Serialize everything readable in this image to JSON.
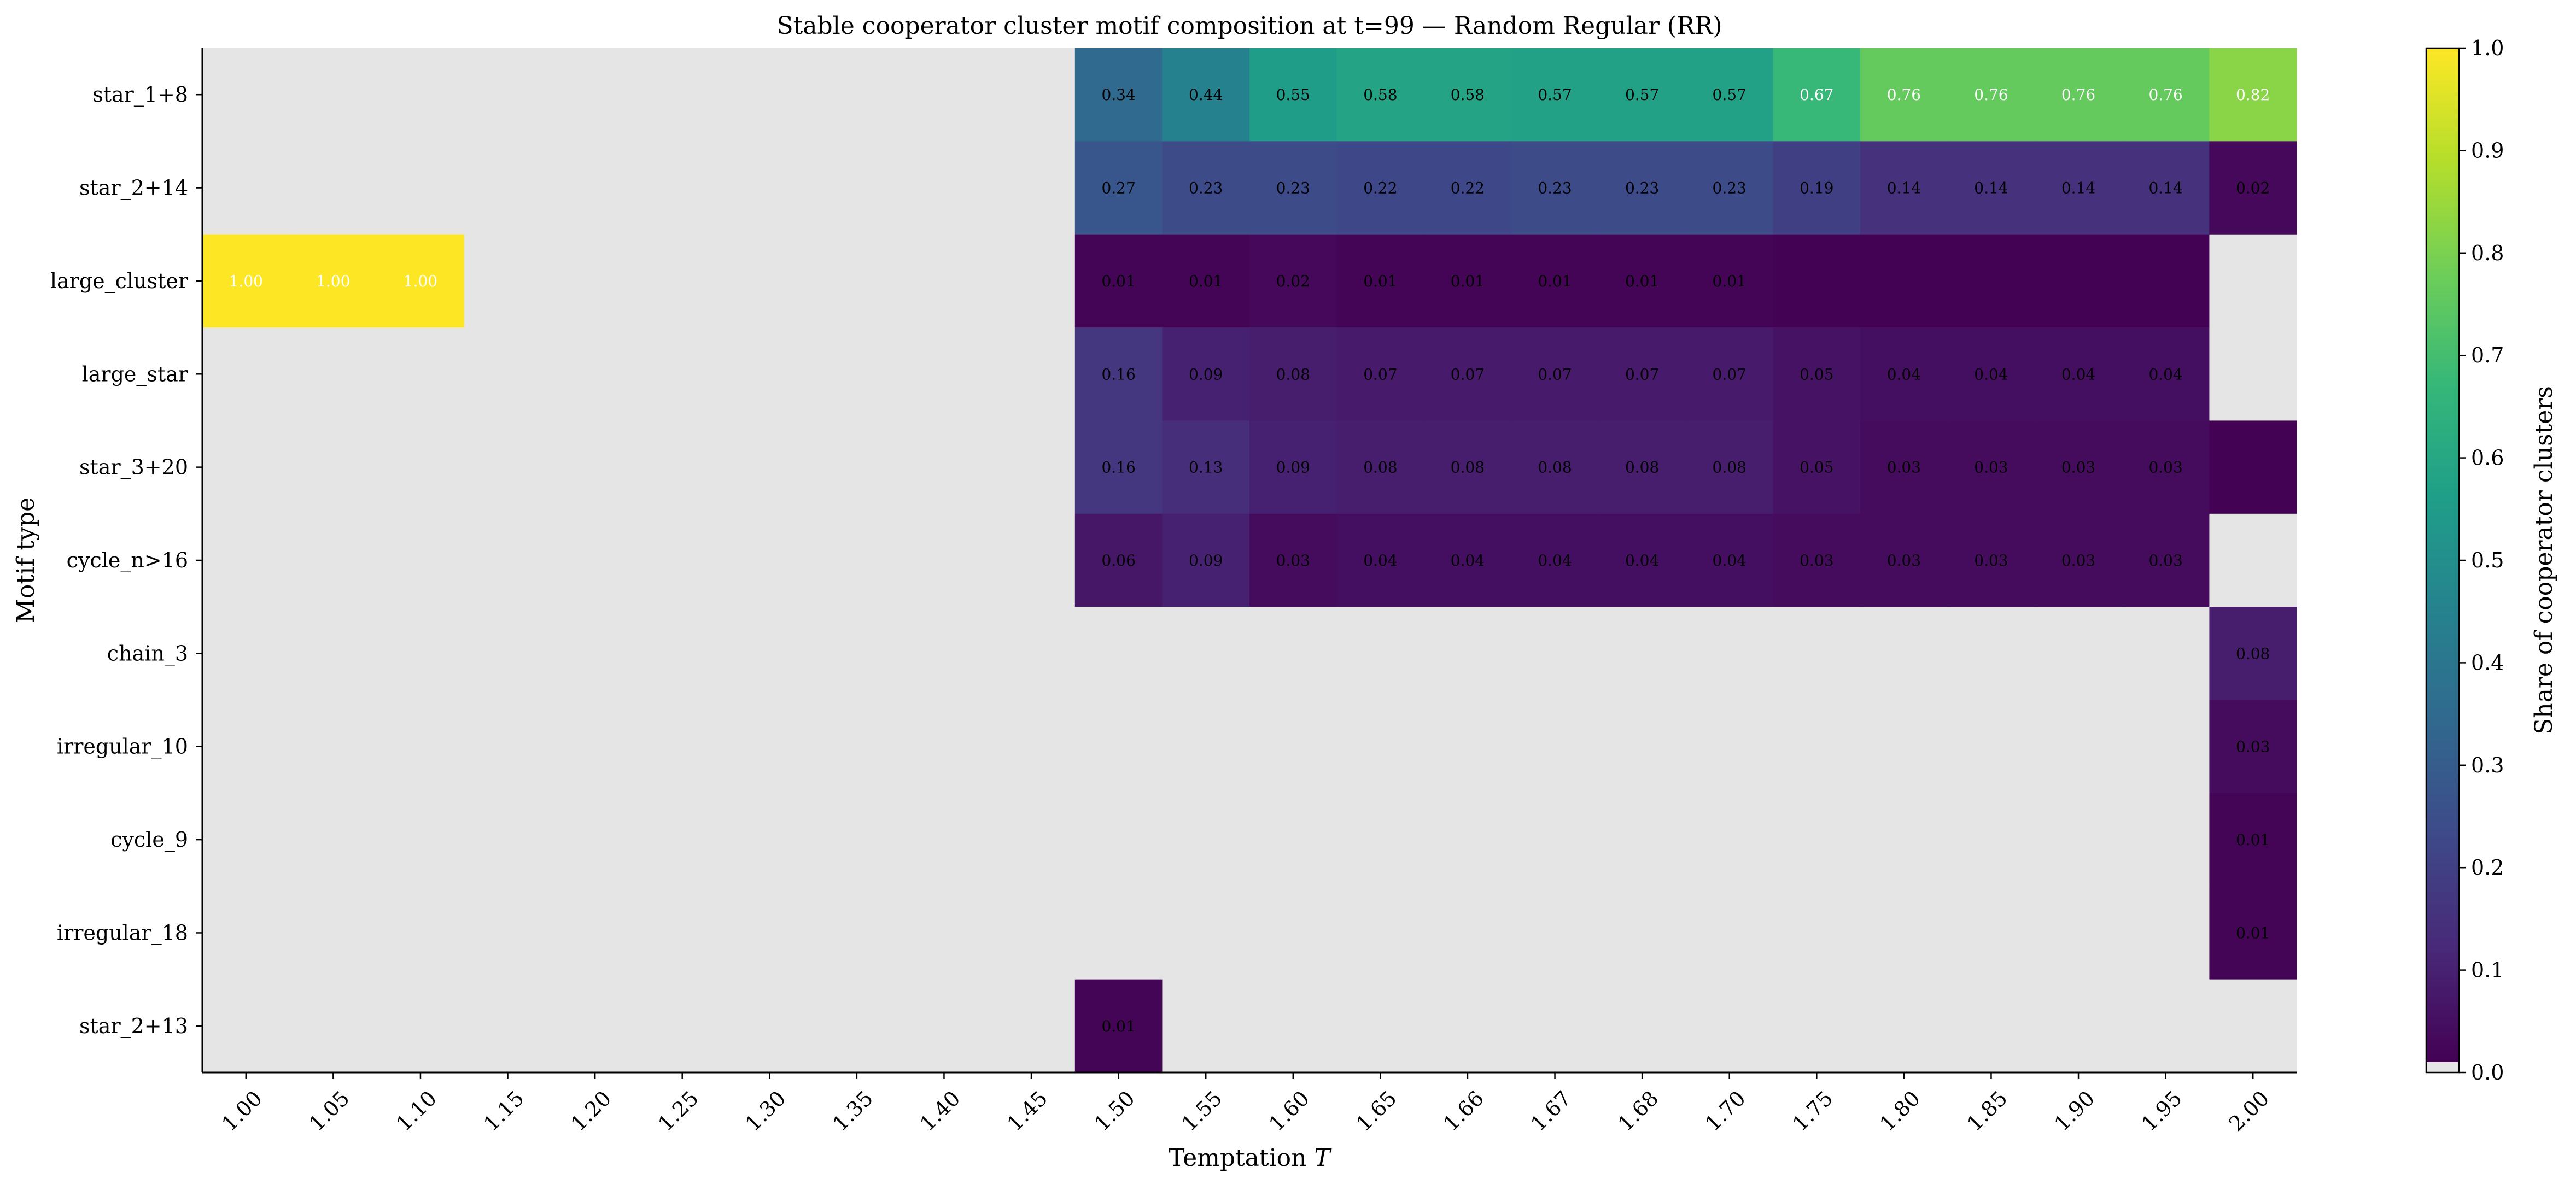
{
  "chart_data": {
    "type": "heatmap",
    "title": "Stable cooperator cluster motif composition at t=99 — Random Regular (RR)",
    "xlabel_main": "Temptation ",
    "xlabel_var": "T",
    "ylabel": "Motif type",
    "colorbar_label": "Share of cooperator clusters",
    "colormap": "viridis",
    "empty_cell_color": "#e5e5e5",
    "vlim": [
      0.0,
      1.0
    ],
    "colorbar_ticks": [
      "0.0",
      "0.1",
      "0.2",
      "0.3",
      "0.4",
      "0.5",
      "0.6",
      "0.7",
      "0.8",
      "0.9",
      "1.0"
    ],
    "columns": [
      "1.00",
      "1.05",
      "1.10",
      "1.15",
      "1.20",
      "1.25",
      "1.30",
      "1.35",
      "1.40",
      "1.45",
      "1.50",
      "1.55",
      "1.60",
      "1.65",
      "1.66",
      "1.67",
      "1.68",
      "1.70",
      "1.75",
      "1.80",
      "1.85",
      "1.90",
      "1.95",
      "2.00"
    ],
    "rows": [
      "star_1+8",
      "star_2+14",
      "large_cluster",
      "large_star",
      "star_3+20",
      "cycle_n>16",
      "chain_3",
      "irregular_10",
      "cycle_9",
      "irregular_18",
      "star_2+13"
    ],
    "values": [
      [
        null,
        null,
        null,
        null,
        null,
        null,
        null,
        null,
        null,
        null,
        0.34,
        0.44,
        0.55,
        0.58,
        0.58,
        0.57,
        0.57,
        0.57,
        0.67,
        0.76,
        0.76,
        0.76,
        0.76,
        0.82
      ],
      [
        null,
        null,
        null,
        null,
        null,
        null,
        null,
        null,
        null,
        null,
        0.27,
        0.23,
        0.23,
        0.22,
        0.22,
        0.23,
        0.23,
        0.23,
        0.19,
        0.14,
        0.14,
        0.14,
        0.14,
        0.02
      ],
      [
        1.0,
        1.0,
        1.0,
        null,
        null,
        null,
        null,
        null,
        null,
        null,
        0.01,
        0.01,
        0.02,
        0.01,
        0.01,
        0.01,
        0.01,
        0.01,
        0.002,
        0.002,
        0.002,
        0.002,
        0.002,
        null
      ],
      [
        null,
        null,
        null,
        null,
        null,
        null,
        null,
        null,
        null,
        null,
        0.16,
        0.09,
        0.08,
        0.07,
        0.07,
        0.07,
        0.07,
        0.07,
        0.05,
        0.04,
        0.04,
        0.04,
        0.04,
        null
      ],
      [
        null,
        null,
        null,
        null,
        null,
        null,
        null,
        null,
        null,
        null,
        0.16,
        0.13,
        0.09,
        0.08,
        0.08,
        0.08,
        0.08,
        0.08,
        0.05,
        0.03,
        0.03,
        0.03,
        0.03,
        0.004
      ],
      [
        null,
        null,
        null,
        null,
        null,
        null,
        null,
        null,
        null,
        null,
        0.06,
        0.09,
        0.03,
        0.04,
        0.04,
        0.04,
        0.04,
        0.04,
        0.03,
        0.03,
        0.03,
        0.03,
        0.03,
        null
      ],
      [
        null,
        null,
        null,
        null,
        null,
        null,
        null,
        null,
        null,
        null,
        null,
        null,
        null,
        null,
        null,
        null,
        null,
        null,
        null,
        null,
        null,
        null,
        null,
        0.08
      ],
      [
        null,
        null,
        null,
        null,
        null,
        null,
        null,
        null,
        null,
        null,
        null,
        null,
        null,
        null,
        null,
        null,
        null,
        null,
        null,
        null,
        null,
        null,
        null,
        0.03
      ],
      [
        null,
        null,
        null,
        null,
        null,
        null,
        null,
        null,
        null,
        null,
        null,
        null,
        null,
        null,
        null,
        null,
        null,
        null,
        null,
        null,
        null,
        null,
        null,
        0.01
      ],
      [
        null,
        null,
        null,
        null,
        null,
        null,
        null,
        null,
        null,
        null,
        null,
        null,
        null,
        null,
        null,
        null,
        null,
        null,
        null,
        null,
        null,
        null,
        null,
        0.01
      ],
      [
        null,
        null,
        null,
        null,
        null,
        null,
        null,
        null,
        null,
        null,
        0.01,
        null,
        null,
        null,
        null,
        null,
        null,
        null,
        null,
        null,
        null,
        null,
        null,
        null
      ]
    ],
    "cell_labels": [
      [
        null,
        null,
        null,
        null,
        null,
        null,
        null,
        null,
        null,
        null,
        "0.34",
        "0.44",
        "0.55",
        "0.58",
        "0.58",
        "0.57",
        "0.57",
        "0.57",
        "0.67",
        "0.76",
        "0.76",
        "0.76",
        "0.76",
        "0.82"
      ],
      [
        null,
        null,
        null,
        null,
        null,
        null,
        null,
        null,
        null,
        null,
        "0.27",
        "0.23",
        "0.23",
        "0.22",
        "0.22",
        "0.23",
        "0.23",
        "0.23",
        "0.19",
        "0.14",
        "0.14",
        "0.14",
        "0.14",
        "0.02"
      ],
      [
        "1.00",
        "1.00",
        "1.00",
        null,
        null,
        null,
        null,
        null,
        null,
        null,
        "0.01",
        "0.01",
        "0.02",
        "0.01",
        "0.01",
        "0.01",
        "0.01",
        "0.01",
        null,
        null,
        null,
        null,
        null,
        null
      ],
      [
        null,
        null,
        null,
        null,
        null,
        null,
        null,
        null,
        null,
        null,
        "0.16",
        "0.09",
        "0.08",
        "0.07",
        "0.07",
        "0.07",
        "0.07",
        "0.07",
        "0.05",
        "0.04",
        "0.04",
        "0.04",
        "0.04",
        null
      ],
      [
        null,
        null,
        null,
        null,
        null,
        null,
        null,
        null,
        null,
        null,
        "0.16",
        "0.13",
        "0.09",
        "0.08",
        "0.08",
        "0.08",
        "0.08",
        "0.08",
        "0.05",
        "0.03",
        "0.03",
        "0.03",
        "0.03",
        null
      ],
      [
        null,
        null,
        null,
        null,
        null,
        null,
        null,
        null,
        null,
        null,
        "0.06",
        "0.09",
        "0.03",
        "0.04",
        "0.04",
        "0.04",
        "0.04",
        "0.04",
        "0.03",
        "0.03",
        "0.03",
        "0.03",
        "0.03",
        null
      ],
      [
        null,
        null,
        null,
        null,
        null,
        null,
        null,
        null,
        null,
        null,
        null,
        null,
        null,
        null,
        null,
        null,
        null,
        null,
        null,
        null,
        null,
        null,
        null,
        "0.08"
      ],
      [
        null,
        null,
        null,
        null,
        null,
        null,
        null,
        null,
        null,
        null,
        null,
        null,
        null,
        null,
        null,
        null,
        null,
        null,
        null,
        null,
        null,
        null,
        null,
        "0.03"
      ],
      [
        null,
        null,
        null,
        null,
        null,
        null,
        null,
        null,
        null,
        null,
        null,
        null,
        null,
        null,
        null,
        null,
        null,
        null,
        null,
        null,
        null,
        null,
        null,
        "0.01"
      ],
      [
        null,
        null,
        null,
        null,
        null,
        null,
        null,
        null,
        null,
        null,
        null,
        null,
        null,
        null,
        null,
        null,
        null,
        null,
        null,
        null,
        null,
        null,
        null,
        "0.01"
      ],
      [
        null,
        null,
        null,
        null,
        null,
        null,
        null,
        null,
        null,
        null,
        "0.01",
        null,
        null,
        null,
        null,
        null,
        null,
        null,
        null,
        null,
        null,
        null,
        null,
        null
      ]
    ]
  }
}
